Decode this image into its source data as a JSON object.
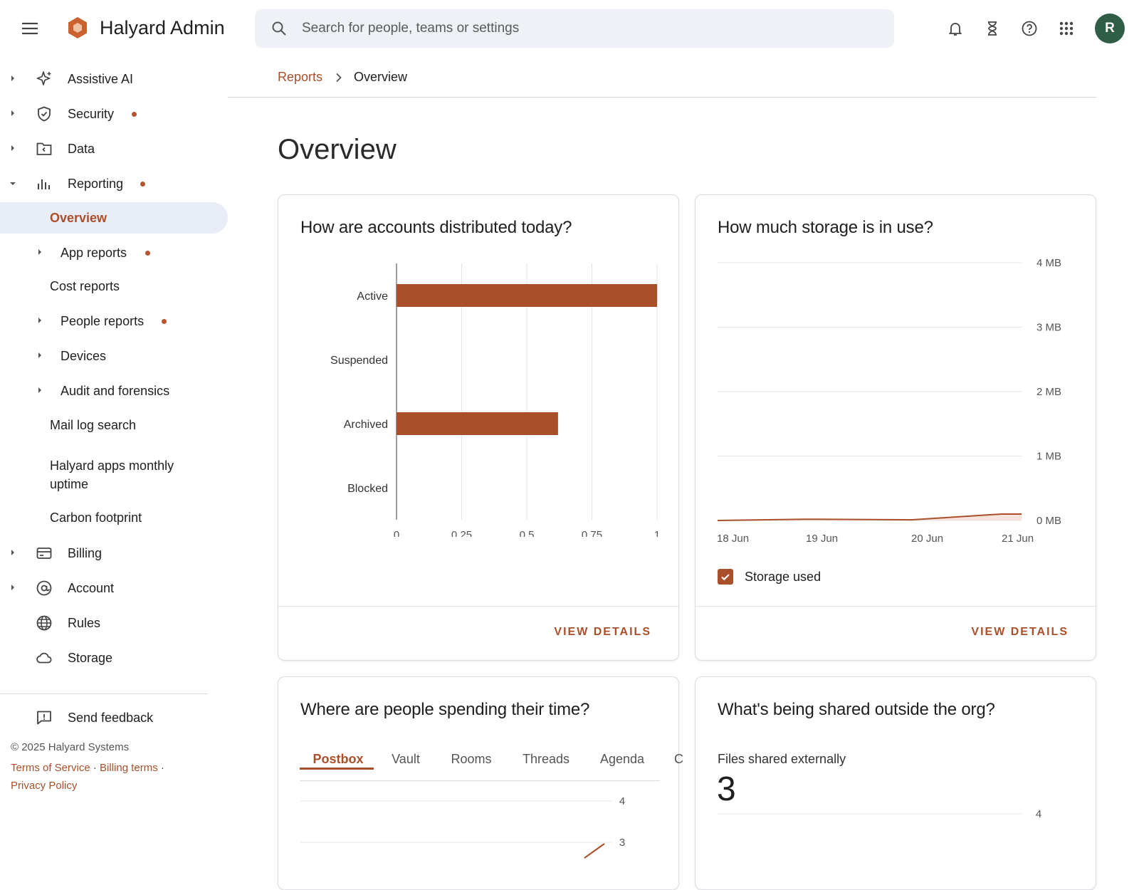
{
  "app": {
    "title": "Halyard Admin",
    "avatar_initial": "R",
    "accent_color": "#a9502a",
    "avatar_color": "#2f5d46"
  },
  "search": {
    "placeholder": "Search for people, teams or settings"
  },
  "topbar_icons": [
    "bell-icon",
    "hourglass-icon",
    "help-icon",
    "apps-grid-icon"
  ],
  "sidebar": {
    "items": [
      {
        "label": "Assistive AI",
        "icon": "sparkle-icon"
      },
      {
        "label": "Security",
        "icon": "shield-icon",
        "dot": true
      },
      {
        "label": "Data",
        "icon": "folder-icon"
      },
      {
        "label": "Reporting",
        "icon": "bar-chart-icon",
        "dot": true,
        "expanded": true
      }
    ],
    "reporting_children": [
      {
        "label": "Overview",
        "active": true
      },
      {
        "label": "App reports",
        "dot": true
      },
      {
        "label": "Cost reports"
      },
      {
        "label": "People reports",
        "dot": true
      },
      {
        "label": "Devices"
      },
      {
        "label": "Audit and forensics"
      },
      {
        "label": "Mail log search"
      },
      {
        "label": "Halyard apps monthly uptime"
      },
      {
        "label": "Carbon footprint"
      }
    ],
    "bottom_items": [
      {
        "label": "Billing",
        "icon": "credit-card-icon"
      },
      {
        "label": "Account",
        "icon": "at-sign-icon"
      },
      {
        "label": "Rules",
        "icon": "globe-icon"
      },
      {
        "label": "Storage",
        "icon": "cloud-icon"
      }
    ],
    "feedback": "Send feedback",
    "copyright": "© 2025 Halyard Systems",
    "links": {
      "terms": "Terms of Service",
      "billing": "Billing terms",
      "privacy": "Privacy Policy",
      "separator": "·"
    }
  },
  "breadcrumb": {
    "parent": "Reports",
    "current": "Overview"
  },
  "page_title": "Overview",
  "cards": {
    "accounts": {
      "title": "How are accounts distributed today?",
      "view_details": "VIEW DETAILS"
    },
    "storage": {
      "title": "How much storage is in use?",
      "legend": "Storage used",
      "view_details": "VIEW DETAILS"
    },
    "time": {
      "title": "Where are people spending their time?",
      "tabs": [
        "Postbox",
        "Vault",
        "Rooms",
        "Threads",
        "Agenda",
        "C"
      ],
      "active_tab": 0
    },
    "shared": {
      "title": "What's being shared outside the org?",
      "files_label": "Files shared externally",
      "files_value": "3"
    }
  },
  "chart_data": [
    {
      "type": "bar",
      "orientation": "horizontal",
      "categories": [
        "Active",
        "Suspended",
        "Archived",
        "Blocked"
      ],
      "values": [
        1,
        0,
        0.62,
        0
      ],
      "xlim": [
        0,
        1
      ],
      "xticks": [
        "0",
        "0.25",
        "0.5",
        "0.75",
        "1"
      ],
      "color": "#a9502a",
      "grid": true
    },
    {
      "type": "area",
      "x": [
        "18 Jun",
        "19 Jun",
        "20 Jun",
        "21 Jun"
      ],
      "series": [
        {
          "name": "Storage used",
          "values_mb": [
            0,
            0.02,
            0.01,
            0.1
          ]
        }
      ],
      "ylim": [
        0,
        4
      ],
      "yticks": [
        "4 MB",
        "3 MB",
        "2 MB",
        "1 MB",
        "0 MB"
      ],
      "color": "#a9502a",
      "grid": true
    },
    {
      "type": "line",
      "yticks": [
        "4",
        "3"
      ],
      "series": [
        {
          "values": [
            2.7,
            3.6
          ]
        }
      ],
      "color": "#a9502a"
    },
    {
      "type": "line",
      "yticks": [
        "4"
      ]
    }
  ]
}
